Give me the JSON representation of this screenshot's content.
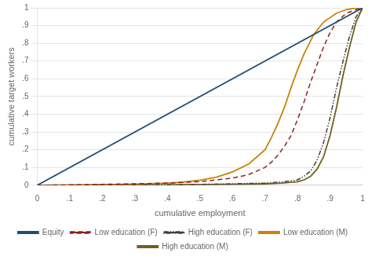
{
  "chart_data": {
    "type": "line",
    "xlabel": "cumulative employment",
    "ylabel": "cumulative target workers",
    "xlim": [
      0,
      1
    ],
    "ylim": [
      0,
      1
    ],
    "xticks": [
      0,
      {
        "value": 0.1,
        "label": ".1"
      },
      {
        "value": 0.2,
        "label": ".2"
      },
      {
        "value": 0.3,
        "label": ".3"
      },
      {
        "value": 0.4,
        "label": ".4"
      },
      {
        "value": 0.5,
        "label": ".5"
      },
      {
        "value": 0.6,
        "label": ".6"
      },
      {
        "value": 0.7,
        "label": ".7"
      },
      {
        "value": 0.8,
        "label": ".8"
      },
      {
        "value": 0.9,
        "label": ".9"
      },
      1
    ],
    "yticks": [
      0,
      {
        "value": 0.1,
        "label": ".1"
      },
      {
        "value": 0.2,
        "label": ".2"
      },
      {
        "value": 0.3,
        "label": ".3"
      },
      {
        "value": 0.4,
        "label": ".4"
      },
      {
        "value": 0.5,
        "label": ".5"
      },
      {
        "value": 0.6,
        "label": ".6"
      },
      {
        "value": 0.7,
        "label": ".7"
      },
      {
        "value": 0.8,
        "label": ".8"
      },
      {
        "value": 0.9,
        "label": ".9"
      },
      1
    ],
    "grid": "y",
    "legend": "bottom",
    "series": [
      {
        "name": "Equity",
        "color": "#1f4e79",
        "line_style": "solid",
        "x": [
          0,
          1
        ],
        "values": [
          0,
          1
        ]
      },
      {
        "name": "Low education (F)",
        "color": "#8b2020",
        "line_style": "dashed",
        "x": [
          0,
          0.05,
          0.1,
          0.2,
          0.3,
          0.4,
          0.5,
          0.6,
          0.65,
          0.7,
          0.72,
          0.74,
          0.76,
          0.78,
          0.8,
          0.82,
          0.84,
          0.86,
          0.88,
          0.9,
          0.92,
          0.95,
          0.98,
          1.0
        ],
        "values": [
          0,
          0.001,
          0.002,
          0.005,
          0.008,
          0.012,
          0.02,
          0.04,
          0.06,
          0.1,
          0.13,
          0.17,
          0.22,
          0.28,
          0.37,
          0.47,
          0.58,
          0.68,
          0.78,
          0.86,
          0.92,
          0.97,
          0.99,
          1.0
        ]
      },
      {
        "name": "High education (F)",
        "color": "#404040",
        "line_style": "dashdotdot",
        "x": [
          0,
          0.1,
          0.2,
          0.3,
          0.4,
          0.5,
          0.6,
          0.7,
          0.75,
          0.8,
          0.82,
          0.84,
          0.86,
          0.88,
          0.9,
          0.92,
          0.94,
          0.96,
          0.98,
          1.0
        ],
        "values": [
          0,
          0.0005,
          0.001,
          0.002,
          0.003,
          0.005,
          0.008,
          0.012,
          0.018,
          0.03,
          0.05,
          0.08,
          0.14,
          0.24,
          0.38,
          0.55,
          0.7,
          0.84,
          0.95,
          1.0
        ]
      },
      {
        "name": "Low education (M)",
        "color": "#c8820a",
        "line_style": "solid",
        "x": [
          0,
          0.1,
          0.2,
          0.3,
          0.4,
          0.45,
          0.5,
          0.55,
          0.6,
          0.65,
          0.7,
          0.72,
          0.74,
          0.76,
          0.78,
          0.8,
          0.82,
          0.85,
          0.88,
          0.92,
          0.95,
          0.98,
          1.0
        ],
        "values": [
          0,
          0.001,
          0.003,
          0.006,
          0.012,
          0.018,
          0.028,
          0.045,
          0.075,
          0.12,
          0.2,
          0.27,
          0.35,
          0.44,
          0.55,
          0.65,
          0.74,
          0.85,
          0.92,
          0.97,
          0.99,
          1.0,
          1.0
        ]
      },
      {
        "name": "High education (M)",
        "color": "#706020",
        "line_style": "solid",
        "x": [
          0,
          0.2,
          0.4,
          0.6,
          0.7,
          0.75,
          0.8,
          0.82,
          0.84,
          0.86,
          0.88,
          0.9,
          0.92,
          0.94,
          0.96,
          0.98,
          1.0
        ],
        "values": [
          0,
          0.001,
          0.002,
          0.005,
          0.008,
          0.012,
          0.02,
          0.03,
          0.05,
          0.09,
          0.16,
          0.28,
          0.44,
          0.62,
          0.78,
          0.92,
          1.0
        ]
      }
    ]
  }
}
